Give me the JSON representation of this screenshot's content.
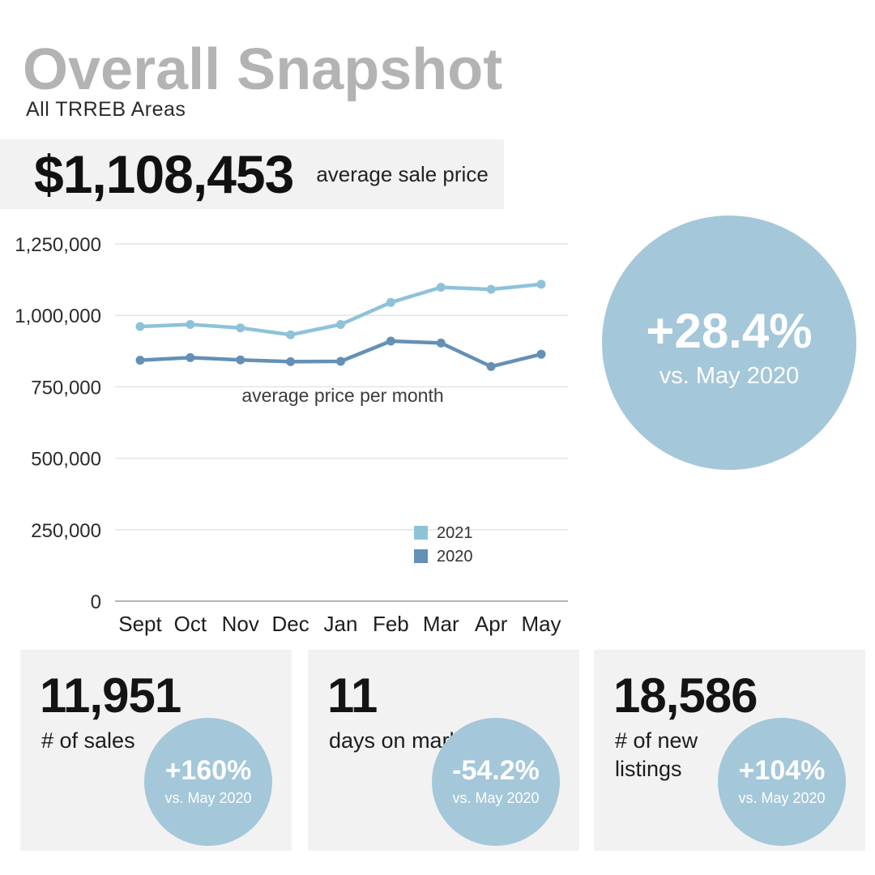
{
  "header": {
    "title": "Overall Snapshot",
    "subtitle": "All TRREB Areas"
  },
  "price_banner": {
    "value": "$1,108,453",
    "label": "average sale price"
  },
  "highlight_circle": {
    "value": "+28.4%",
    "caption": "vs. May 2020"
  },
  "chart_data": {
    "type": "line",
    "title": "average price per month",
    "categories": [
      "Sept",
      "Oct",
      "Nov",
      "Dec",
      "Jan",
      "Feb",
      "Mar",
      "Apr",
      "May"
    ],
    "series": [
      {
        "name": "2021",
        "color": "#8ec2d9",
        "values": [
          961000,
          968000,
          956000,
          932000,
          968000,
          1045000,
          1098000,
          1091000,
          1108453
        ]
      },
      {
        "name": "2020",
        "color": "#6490b6",
        "values": [
          843000,
          852000,
          844000,
          838000,
          839000,
          910000,
          903000,
          821000,
          864000
        ]
      }
    ],
    "xlabel": "",
    "ylabel": "",
    "ylim": [
      0,
      1250000
    ],
    "y_ticks": [
      0,
      250000,
      500000,
      750000,
      1000000,
      1250000
    ],
    "y_tick_labels": [
      "0",
      "250,000",
      "500,000",
      "750,000",
      "1,000,000",
      "1,250,000"
    ],
    "grid": true,
    "legend_position": "inside-right"
  },
  "stat_cards": [
    {
      "value": "11,951",
      "label": "# of sales",
      "badge_value": "+160%",
      "badge_caption": "vs. May 2020"
    },
    {
      "value": "11",
      "label": "days on market",
      "badge_value": "-54.2%",
      "badge_caption": "vs. May 2020"
    },
    {
      "value": "18,586",
      "label": "# of new listings",
      "badge_value": "+104%",
      "badge_caption": "vs. May 2020"
    }
  ],
  "colors": {
    "accent_circle": "#a4c7d9",
    "card_background": "#f2f2f2",
    "title_gray": "#b3b3b3",
    "gridline": "#e4e4e4",
    "axis_line": "#b5b5b5",
    "axis_text": "#2b2b2b"
  }
}
